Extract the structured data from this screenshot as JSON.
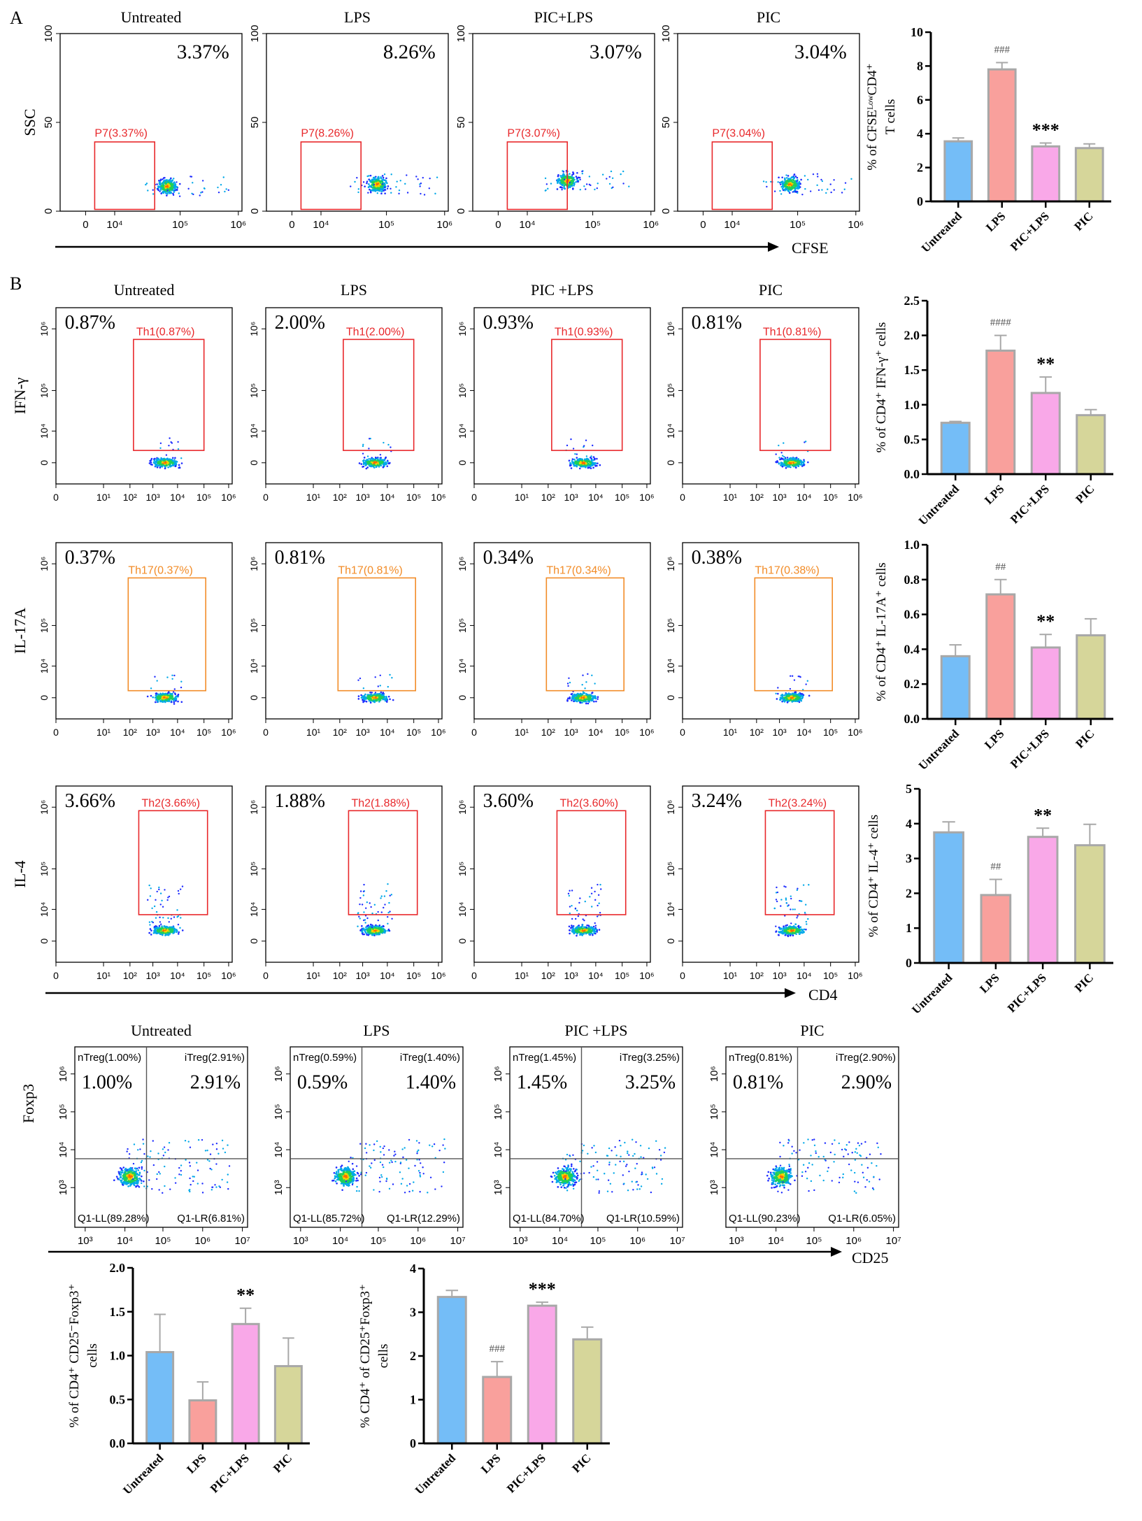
{
  "panel_a": {
    "label": "A",
    "flow": {
      "titles": [
        "Untreated",
        "LPS",
        "PIC+LPS",
        "PIC"
      ],
      "percents": [
        "3.37%",
        "8.26%",
        "3.07%",
        "3.04%"
      ],
      "gates": [
        "P7(3.37%)",
        "P7(8.26%)",
        "P7(3.07%)",
        "P7(3.04%)"
      ],
      "y_axis": "SSC",
      "x_axis": "CFSE",
      "yticks": [
        "0",
        "50",
        "100"
      ],
      "xticks": [
        "0",
        "10⁴",
        "10⁵",
        "10⁶"
      ]
    }
  },
  "panel_b": {
    "label": "B",
    "titles": [
      "Untreated",
      "LPS",
      "PIC +LPS",
      "PIC"
    ],
    "x_axis": "CD4",
    "yticks": [
      "0",
      "10⁴",
      "10⁵",
      "10⁶"
    ],
    "xticks": [
      "0",
      "10¹",
      "10²",
      "10³",
      "10⁴",
      "10⁵",
      "10⁶"
    ],
    "rows": [
      {
        "marker": "IFN-γ",
        "percents": [
          "0.87%",
          "2.00%",
          "0.93%",
          "0.81%"
        ],
        "gates": [
          "Th1(0.87%)",
          "Th1(2.00%)",
          "Th1(0.93%)",
          "Th1(0.81%)"
        ],
        "gate_color": "#e8282b"
      },
      {
        "marker": "IL-17A",
        "percents": [
          "0.37%",
          "0.81%",
          "0.34%",
          "0.38%"
        ],
        "gates": [
          "Th17(0.37%)",
          "Th17(0.81%)",
          "Th17(0.34%)",
          "Th17(0.38%)"
        ],
        "gate_color": "#f28c28"
      },
      {
        "marker": "IL-4",
        "percents": [
          "3.66%",
          "1.88%",
          "3.60%",
          "3.24%"
        ],
        "gates": [
          "Th2(3.66%)",
          "Th2(1.88%)",
          "Th2(3.60%)",
          "Th2(3.24%)"
        ],
        "gate_color": "#e8282b"
      }
    ]
  },
  "panel_c": {
    "titles": [
      "Untreated",
      "LPS",
      "PIC +LPS",
      "PIC"
    ],
    "y_axis": "Foxp3",
    "x_axis": "CD25",
    "yticks": [
      "10³",
      "10⁴",
      "10⁵",
      "10⁶"
    ],
    "xticks": [
      "10³",
      "10⁴",
      "10⁵",
      "10⁶",
      "10⁷"
    ],
    "plots": [
      {
        "nTreg": "nTreg(1.00%)",
        "iTreg": "iTreg(2.91%)",
        "ul": "1.00%",
        "ur": "2.91%",
        "ll": "Q1-LL(89.28%)",
        "lr": "Q1-LR(6.81%)"
      },
      {
        "nTreg": "nTreg(0.59%)",
        "iTreg": "iTreg(1.40%)",
        "ul": "0.59%",
        "ur": "1.40%",
        "ll": "Q1-LL(85.72%)",
        "lr": "Q1-LR(12.29%)"
      },
      {
        "nTreg": "nTreg(1.45%)",
        "iTreg": "iTreg(3.25%)",
        "ul": "1.45%",
        "ur": "3.25%",
        "ll": "Q1-LL(84.70%)",
        "lr": "Q1-LR(10.59%)"
      },
      {
        "nTreg": "nTreg(0.81%)",
        "iTreg": "iTreg(2.90%)",
        "ul": "0.81%",
        "ur": "2.90%",
        "ll": "Q1-LL(90.23%)",
        "lr": "Q1-LR(6.05%)"
      }
    ]
  },
  "colors": {
    "bars": [
      "#74bdf7",
      "#f9a09c",
      "#f9a8e8",
      "#d6d69a"
    ],
    "bar_border": "#a8a8a8",
    "gate_red": "#e8282b",
    "gate_orange": "#f28c28"
  },
  "chart_data": [
    {
      "type": "bar",
      "title": "",
      "categories": [
        "Untreated",
        "LPS",
        "PIC+LPS",
        "PIC"
      ],
      "values": [
        3.55,
        7.8,
        3.25,
        3.15
      ],
      "errors": [
        0.2,
        0.4,
        0.2,
        0.25
      ],
      "annotations": [
        "",
        "###",
        "***",
        ""
      ],
      "ylabel": [
        "% of CFSEᴸᵒʷCD4⁺",
        "T cells"
      ],
      "xlabel": "",
      "ylim": [
        0,
        10
      ],
      "yticks": [
        "0",
        "2",
        "4",
        "6",
        "8",
        "10"
      ]
    },
    {
      "type": "bar",
      "title": "",
      "categories": [
        "Untreated",
        "LPS",
        "PIC+LPS",
        "PIC"
      ],
      "values": [
        0.74,
        1.78,
        1.17,
        0.85
      ],
      "errors": [
        0.02,
        0.22,
        0.23,
        0.08
      ],
      "annotations": [
        "",
        "####",
        "**",
        ""
      ],
      "ylabel": [
        "% of CD4⁺ IFN-γ⁺ cells"
      ],
      "xlabel": "",
      "ylim": [
        0,
        2.5
      ],
      "yticks": [
        "0.0",
        "0.5",
        "1.0",
        "1.5",
        "2.0",
        "2.5"
      ]
    },
    {
      "type": "bar",
      "title": "",
      "categories": [
        "Untreated",
        "LPS",
        "PIC+LPS",
        "PIC"
      ],
      "values": [
        0.36,
        0.715,
        0.41,
        0.48
      ],
      "errors": [
        0.065,
        0.085,
        0.075,
        0.095
      ],
      "annotations": [
        "",
        "##",
        "**",
        ""
      ],
      "ylabel": [
        "% of CD4⁺ IL-17A⁺ cells"
      ],
      "xlabel": "",
      "ylim": [
        0,
        1.0
      ],
      "yticks": [
        "0.0",
        "0.2",
        "0.4",
        "0.6",
        "0.8",
        "1.0"
      ]
    },
    {
      "type": "bar",
      "title": "",
      "categories": [
        "Untreated",
        "LPS",
        "PIC+LPS",
        "PIC"
      ],
      "values": [
        3.75,
        1.95,
        3.62,
        3.38
      ],
      "errors": [
        0.3,
        0.45,
        0.25,
        0.6
      ],
      "annotations": [
        "",
        "##",
        "**",
        ""
      ],
      "ylabel": [
        "% of CD4⁺ IL-4⁺ cells"
      ],
      "xlabel": "",
      "ylim": [
        0,
        5
      ],
      "yticks": [
        "0",
        "1",
        "2",
        "3",
        "4",
        "5"
      ]
    },
    {
      "type": "bar",
      "title": "",
      "categories": [
        "Untreated",
        "LPS",
        "PIC+LPS",
        "PIC"
      ],
      "values": [
        1.04,
        0.49,
        1.36,
        0.88
      ],
      "errors": [
        0.43,
        0.21,
        0.18,
        0.32
      ],
      "annotations": [
        "",
        "",
        "**",
        ""
      ],
      "ylabel": [
        "% of CD4⁺ CD25⁻Foxp3⁺",
        "cells"
      ],
      "xlabel": "",
      "ylim": [
        0,
        2.0
      ],
      "yticks": [
        "0.0",
        "0.5",
        "1.0",
        "1.5",
        "2.0"
      ]
    },
    {
      "type": "bar",
      "title": "",
      "categories": [
        "Untreated",
        "LPS",
        "PIC+LPS",
        "PIC"
      ],
      "values": [
        3.35,
        1.52,
        3.15,
        2.38
      ],
      "errors": [
        0.15,
        0.35,
        0.08,
        0.28
      ],
      "annotations": [
        "",
        "###",
        "***",
        ""
      ],
      "ylabel": [
        "% CD4⁺ of CD25⁺Foxp3⁺",
        "cells"
      ],
      "xlabel": "",
      "ylim": [
        0,
        4
      ],
      "yticks": [
        "0",
        "1",
        "2",
        "3",
        "4"
      ]
    }
  ]
}
